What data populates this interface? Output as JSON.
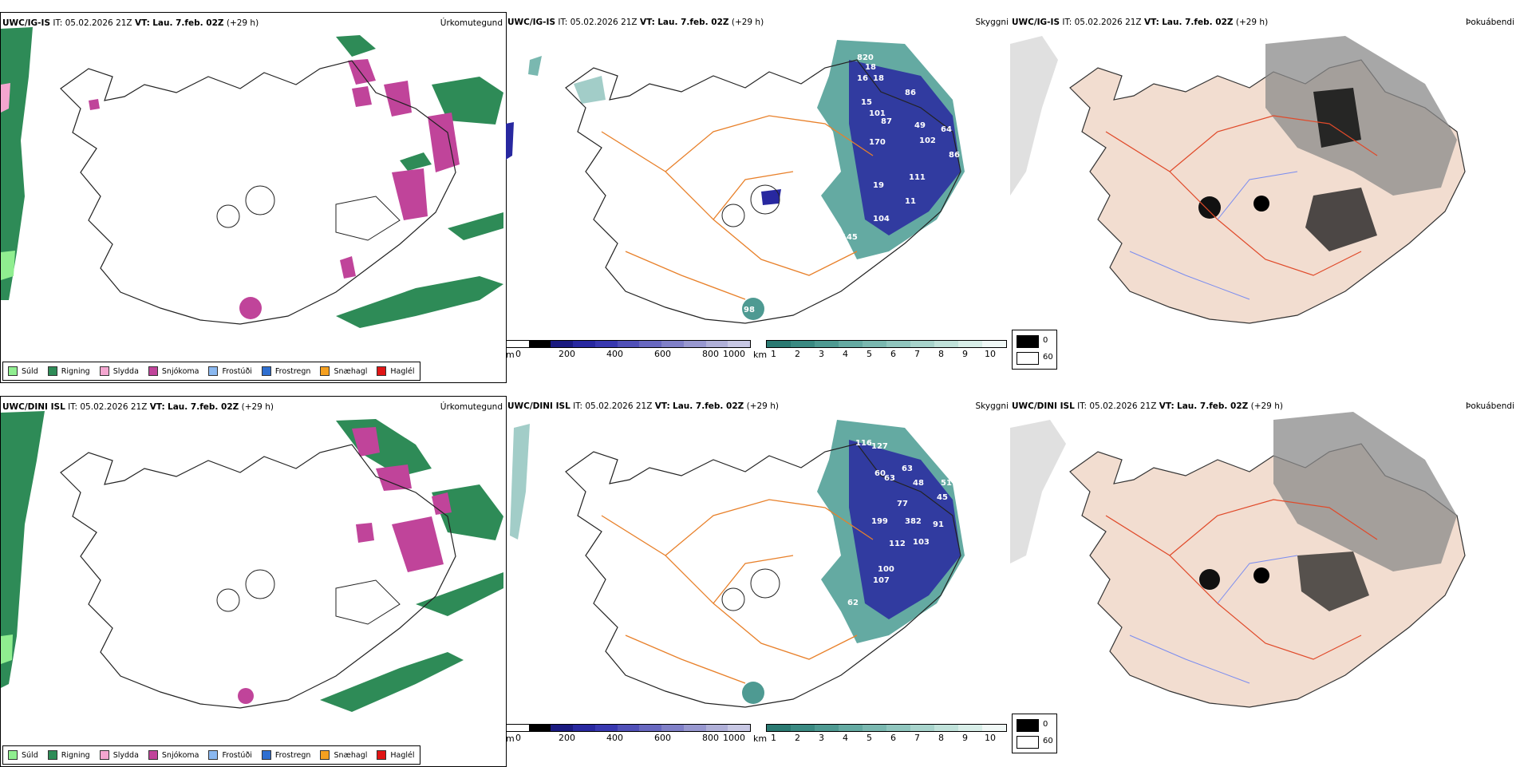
{
  "header": {
    "row1_model": "UWC/IG-IS",
    "row2_model": "UWC/DINI ISL",
    "it_label": "IT:",
    "it_value": "05.02.2026 21Z",
    "vt_label": "VT:",
    "vt_value": "Lau. 7.feb. 02Z",
    "lead": "(+29 h)"
  },
  "panel_titles": {
    "precip_type": "Úrkomutegund",
    "visibility": "Skyggni",
    "fog": "Þokuábendi"
  },
  "precip_legend": [
    {
      "label": "Súld",
      "color": "#90ee90"
    },
    {
      "label": "Rigning",
      "color": "#2e8b57"
    },
    {
      "label": "Slydda",
      "color": "#f4a6d0"
    },
    {
      "label": "Snjókoma",
      "color": "#c0449a"
    },
    {
      "label": "Frostúði",
      "color": "#8ab8f0"
    },
    {
      "label": "Frostregn",
      "color": "#2f6fd0"
    },
    {
      "label": "Snæhagl",
      "color": "#f5a020"
    },
    {
      "label": "Haglél",
      "color": "#e01515"
    }
  ],
  "visibility_bar_m": {
    "unit": "m",
    "ticks": [
      "0",
      "200",
      "400",
      "600",
      "800",
      "1000"
    ],
    "colors": [
      "#000000",
      "#1a1a80",
      "#2828a0",
      "#3838b0",
      "#5050b8",
      "#6868c0",
      "#8080c8",
      "#9898d0",
      "#b0b0d8",
      "#c8c8e4"
    ]
  },
  "visibility_bar_km": {
    "unit": "km",
    "ticks": [
      "1",
      "2",
      "3",
      "4",
      "5",
      "6",
      "7",
      "8",
      "9",
      "10"
    ],
    "colors": [
      "#2a7a72",
      "#3a8a82",
      "#4e9a92",
      "#64aaa2",
      "#7ab8b0",
      "#90c6be",
      "#a8d4cc",
      "#c0e2da",
      "#d8eee8",
      "#f0f8f6"
    ]
  },
  "fog_legend": {
    "high": "0",
    "low": "60"
  },
  "row1_vis_labels": [
    "820",
    "18",
    "16",
    "18",
    "86",
    "15",
    "101",
    "87",
    "49",
    "64",
    "170",
    "102",
    "86",
    "11",
    "111",
    "19",
    "104",
    "98",
    "145"
  ],
  "row2_vis_labels": [
    "116",
    "127",
    "63",
    "60",
    "63",
    "48",
    "51",
    "45",
    "77",
    "199",
    "382",
    "91",
    "103",
    "112",
    "100",
    "107",
    "62",
    "100"
  ]
}
